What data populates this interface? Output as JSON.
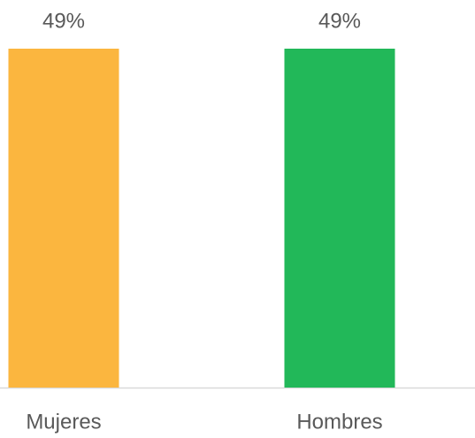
{
  "chart_data": {
    "type": "bar",
    "categories": [
      "Mujeres",
      "Hombres"
    ],
    "values": [
      49,
      49
    ],
    "value_labels": [
      "49%",
      "49%"
    ],
    "colors": [
      "#fbb63f",
      "#22b859"
    ]
  }
}
